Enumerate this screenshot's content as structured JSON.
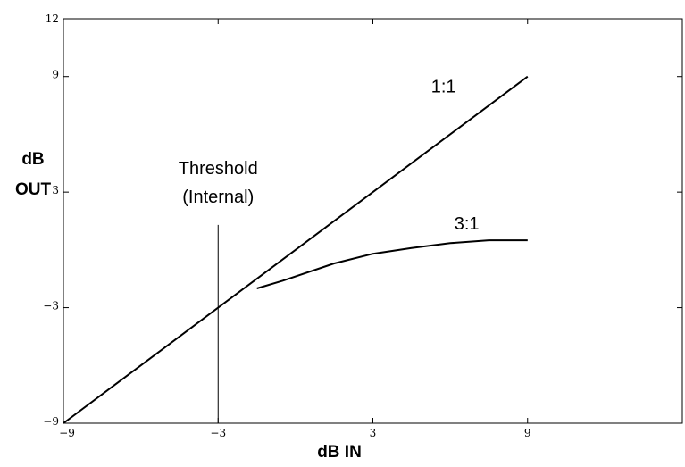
{
  "chart_data": {
    "type": "line",
    "xlabel": "dB IN",
    "ylabel_lines": [
      "dB",
      "OUT"
    ],
    "xlim": [
      -9,
      15
    ],
    "ylim": [
      -9,
      12
    ],
    "x_ticks": [
      -9,
      -3,
      3,
      9
    ],
    "x_tick_labels": [
      "−9",
      "−3",
      "3",
      "9"
    ],
    "y_ticks": [
      -9,
      -3,
      3,
      9,
      12
    ],
    "y_tick_labels": [
      "−9",
      "−3",
      "3",
      "9",
      "12"
    ],
    "series": [
      {
        "name": "1:1",
        "x": [
          -9,
          9
        ],
        "y": [
          -9,
          9
        ]
      },
      {
        "name": "3:1",
        "x": [
          -1.5,
          -0.5,
          1.5,
          3,
          4.5,
          6,
          7.5,
          9
        ],
        "y": [
          -2,
          -1.6,
          -0.7,
          -0.2,
          0.1,
          0.35,
          0.5,
          0.5
        ]
      }
    ],
    "threshold": {
      "label_lines": [
        "Threshold",
        "(Internal)"
      ],
      "x": -3,
      "y_top": 1.3
    },
    "grid": false,
    "legend": "none"
  }
}
